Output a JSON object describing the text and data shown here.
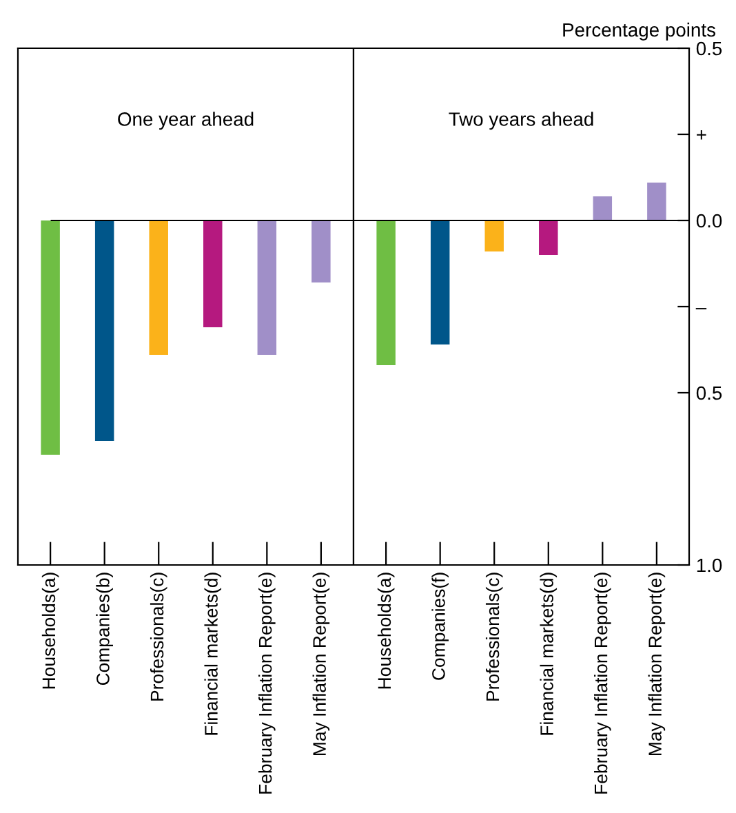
{
  "chart_data": [
    {
      "type": "bar",
      "title": "One year ahead",
      "categories": [
        "Households(a)",
        "Companies(b)",
        "Professionals(c)",
        "Financial markets(d)",
        "February Inflation Report(e)",
        "May Inflation Report(e)"
      ],
      "values": [
        -0.68,
        -0.64,
        -0.39,
        -0.31,
        -0.39,
        -0.18
      ],
      "colors": [
        "#6fbe44",
        "#00568a",
        "#fbb21a",
        "#b5197f",
        "#a08fc8",
        "#a08fc8"
      ],
      "ylim": [
        -1.0,
        0.5
      ],
      "ref_lines": [
        {
          "axis": "y",
          "value": 0.0,
          "color": "#000000"
        }
      ],
      "tick_labels": "x"
    },
    {
      "type": "bar",
      "title": "Two years ahead",
      "ylabel": "Percentage points",
      "categories": [
        "Households(a)",
        "Companies(f)",
        "Professionals(c)",
        "Financial markets(d)",
        "February Inflation Report(e)",
        "May Inflation Report(e)"
      ],
      "values": [
        -0.42,
        -0.36,
        -0.09,
        -0.1,
        0.07,
        0.11
      ],
      "colors": [
        "#6fbe44",
        "#00568a",
        "#fbb21a",
        "#b5197f",
        "#a08fc8",
        "#a08fc8"
      ],
      "ylim": [
        -1.0,
        0.5
      ],
      "yticks": [
        {
          "value": 0.5,
          "label": "0.5"
        },
        {
          "value": 0.25,
          "label": "+"
        },
        {
          "value": 0.0,
          "label": "0.0"
        },
        {
          "value": -0.25,
          "label": "–"
        },
        {
          "value": -0.5,
          "label": "0.5"
        },
        {
          "value": -1.0,
          "label": "1.0"
        }
      ],
      "ref_lines": [
        {
          "axis": "y",
          "value": 0.0,
          "color": "#000000"
        }
      ]
    }
  ]
}
